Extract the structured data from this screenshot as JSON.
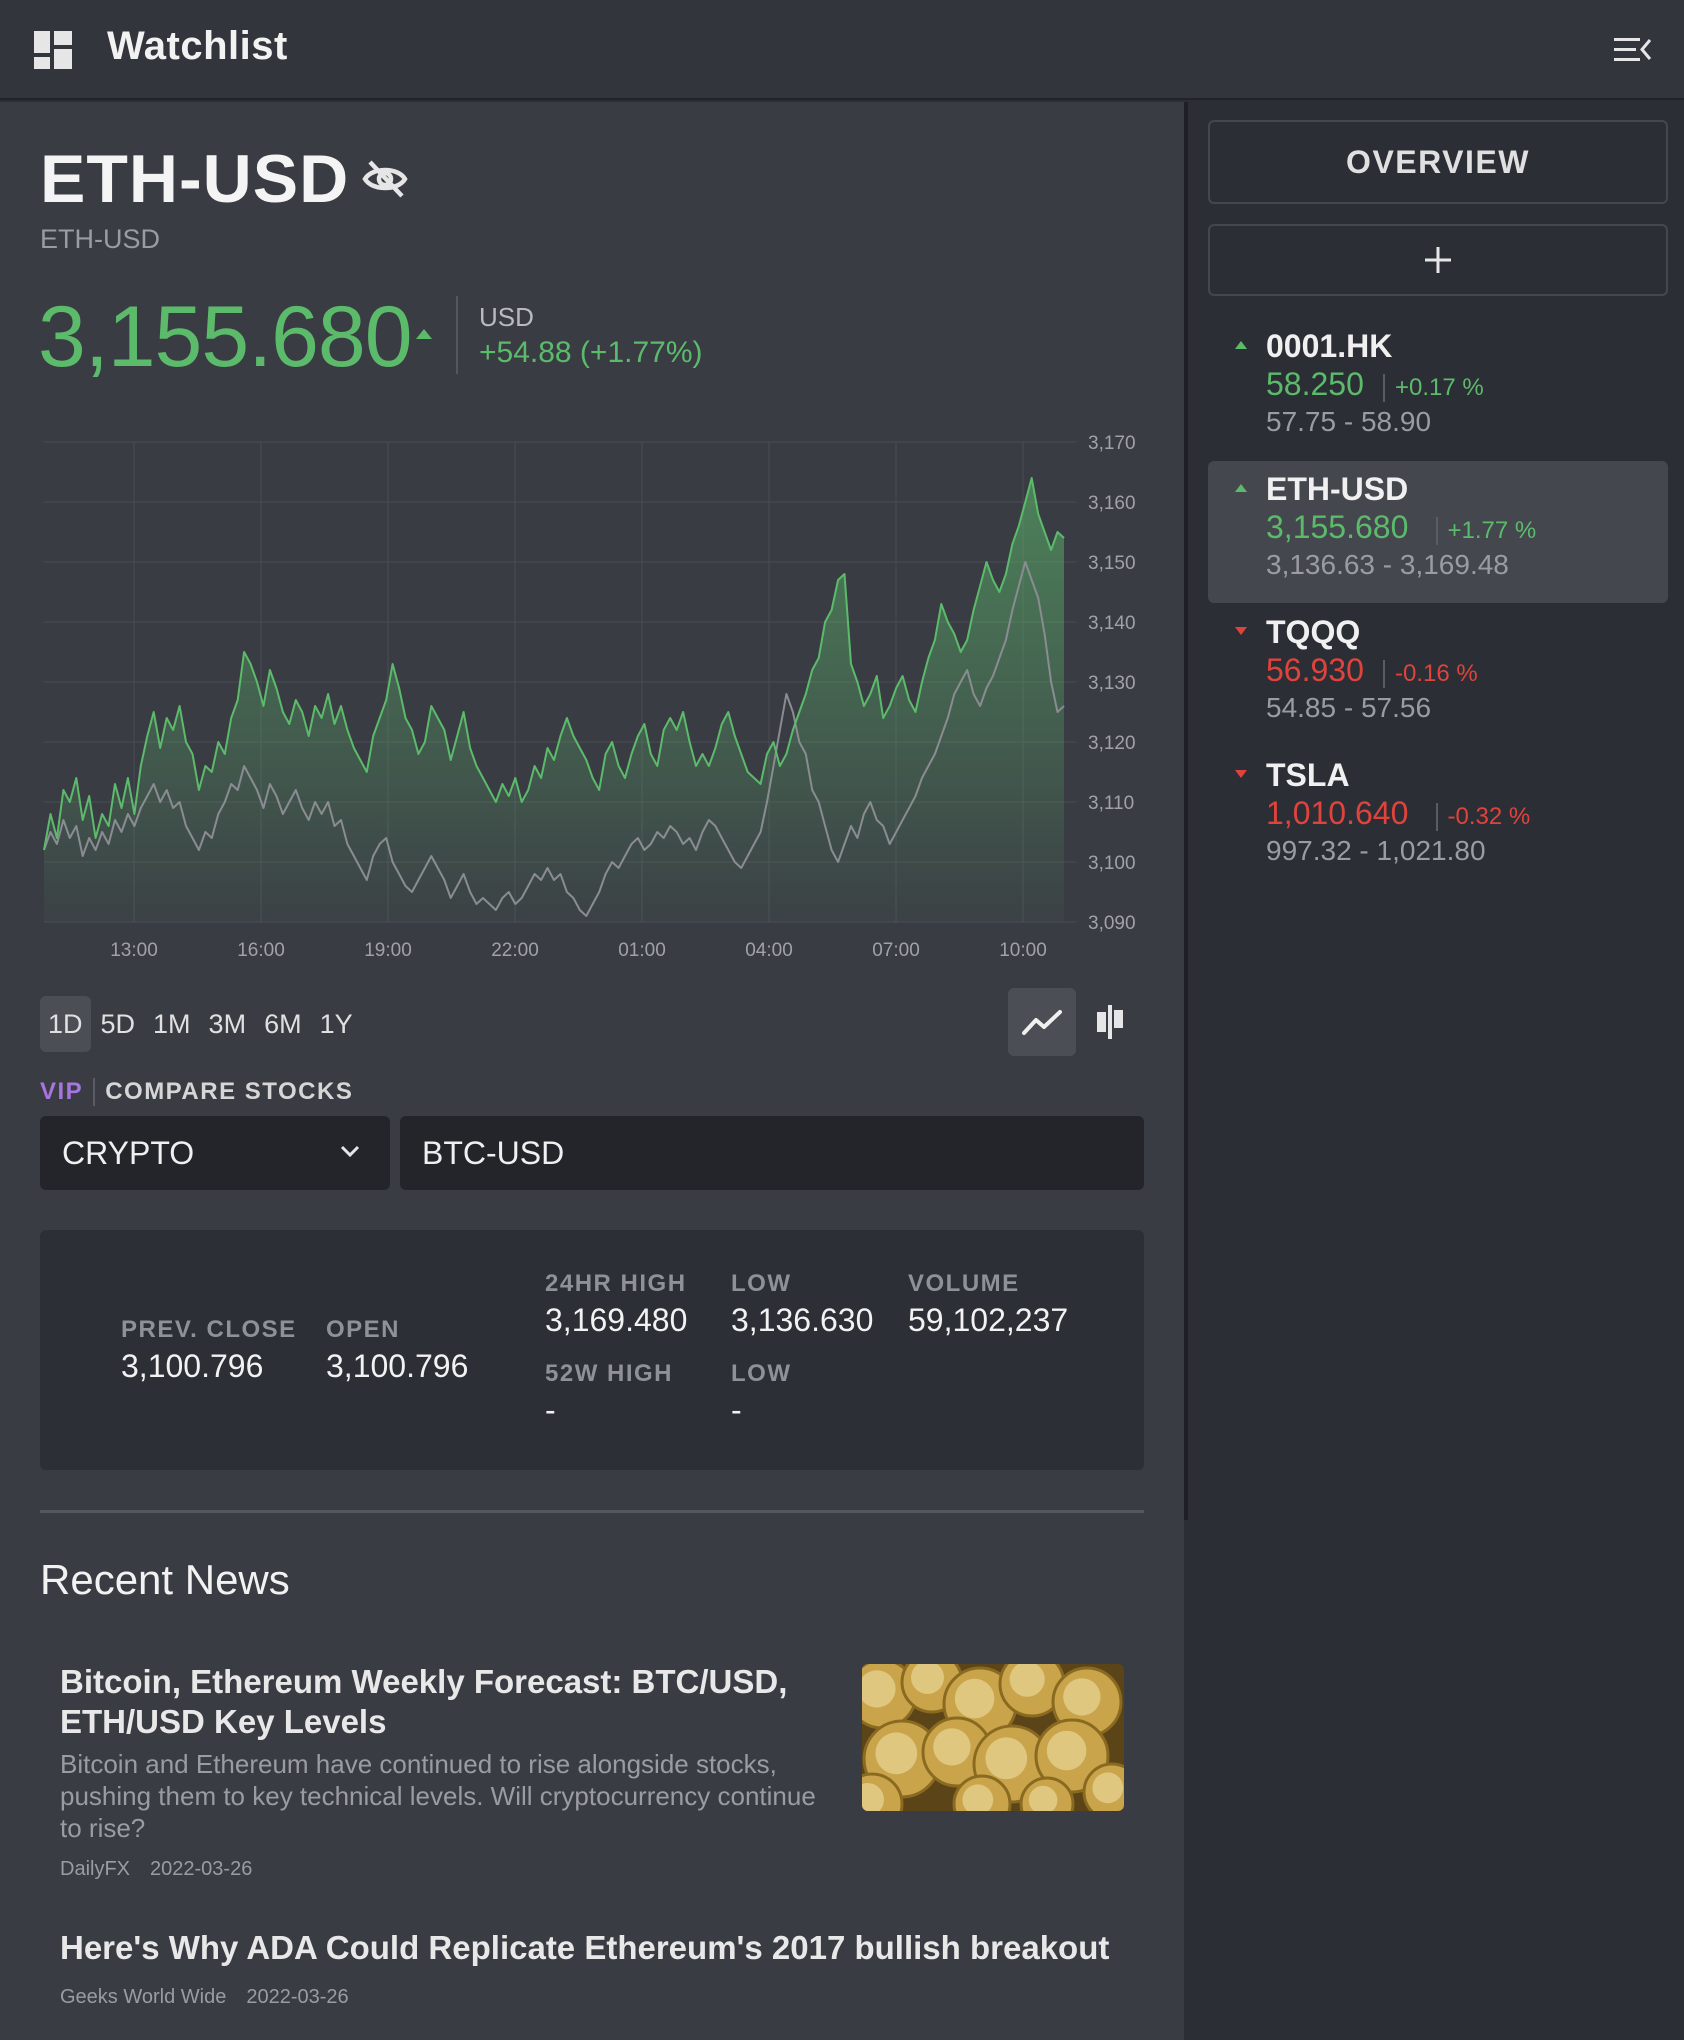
{
  "header": {
    "title": "Watchlist"
  },
  "symbol": {
    "title": "ETH-USD",
    "subtitle": "ETH-USD",
    "price": "3,155.680",
    "currency": "USD",
    "change": "+54.88 (+1.77%)"
  },
  "chart_data": {
    "type": "area",
    "x_ticks": [
      "13:00",
      "16:00",
      "19:00",
      "22:00",
      "01:00",
      "04:00",
      "07:00",
      "10:00"
    ],
    "y_ticks": [
      "3,170",
      "3,160",
      "3,150",
      "3,140",
      "3,130",
      "3,120",
      "3,110",
      "3,100",
      "3,090"
    ],
    "ylim": [
      3090,
      3170
    ],
    "grid": true,
    "series": [
      {
        "color": "#5cbb6b",
        "fill": true,
        "values": [
          3102,
          3108,
          3104,
          3112,
          3110,
          3114,
          3107,
          3111,
          3104,
          3108,
          3106,
          3113,
          3109,
          3114,
          3108,
          3116,
          3121,
          3125,
          3119,
          3124,
          3122,
          3126,
          3120,
          3118,
          3112,
          3116,
          3115,
          3120,
          3118,
          3124,
          3127,
          3135,
          3133,
          3130,
          3126,
          3132,
          3129,
          3125,
          3123,
          3127,
          3125,
          3121,
          3126,
          3124,
          3128,
          3123,
          3126,
          3122,
          3119,
          3117,
          3115,
          3121,
          3124,
          3127,
          3133,
          3129,
          3124,
          3122,
          3118,
          3120,
          3126,
          3124,
          3122,
          3117,
          3121,
          3125,
          3119,
          3116,
          3114,
          3112,
          3110,
          3113,
          3111,
          3114,
          3110,
          3112,
          3116,
          3114,
          3119,
          3117,
          3121,
          3124,
          3121,
          3119,
          3117,
          3114,
          3112,
          3118,
          3120,
          3116,
          3114,
          3118,
          3121,
          3123,
          3118,
          3116,
          3122,
          3124,
          3122,
          3125,
          3120,
          3116,
          3118,
          3116,
          3119,
          3123,
          3125,
          3121,
          3118,
          3115,
          3114,
          3113,
          3118,
          3120,
          3116,
          3118,
          3122,
          3125,
          3128,
          3132,
          3134,
          3140,
          3142,
          3147,
          3148,
          3133,
          3130,
          3126,
          3128,
          3131,
          3124,
          3126,
          3129,
          3131,
          3127,
          3125,
          3130,
          3134,
          3137,
          3143,
          3140,
          3138,
          3135,
          3137,
          3142,
          3146,
          3150,
          3147,
          3145,
          3148,
          3153,
          3156,
          3160,
          3164,
          3158,
          3155,
          3152,
          3155,
          3154
        ]
      },
      {
        "color": "#8a8c92",
        "fill": false,
        "values": [
          3102,
          3105,
          3103,
          3107,
          3104,
          3106,
          3101,
          3104,
          3102,
          3105,
          3103,
          3107,
          3105,
          3108,
          3106,
          3109,
          3111,
          3113,
          3110,
          3112,
          3109,
          3110,
          3106,
          3104,
          3102,
          3105,
          3104,
          3108,
          3110,
          3113,
          3112,
          3116,
          3114,
          3112,
          3109,
          3113,
          3111,
          3108,
          3110,
          3112,
          3109,
          3107,
          3110,
          3108,
          3110,
          3106,
          3107,
          3103,
          3101,
          3099,
          3097,
          3101,
          3103,
          3104,
          3100,
          3098,
          3096,
          3095,
          3097,
          3099,
          3101,
          3099,
          3097,
          3094,
          3096,
          3098,
          3095,
          3093,
          3094,
          3093,
          3092,
          3094,
          3095,
          3093,
          3094,
          3096,
          3098,
          3097,
          3099,
          3097,
          3098,
          3095,
          3094,
          3092,
          3091,
          3093,
          3095,
          3098,
          3100,
          3099,
          3101,
          3103,
          3104,
          3102,
          3103,
          3105,
          3104,
          3106,
          3105,
          3103,
          3104,
          3102,
          3105,
          3107,
          3106,
          3104,
          3102,
          3100,
          3099,
          3101,
          3103,
          3105,
          3110,
          3116,
          3122,
          3128,
          3125,
          3120,
          3118,
          3112,
          3110,
          3106,
          3102,
          3100,
          3103,
          3106,
          3104,
          3108,
          3110,
          3107,
          3106,
          3103,
          3105,
          3107,
          3109,
          3111,
          3114,
          3116,
          3118,
          3121,
          3124,
          3128,
          3130,
          3132,
          3128,
          3126,
          3129,
          3131,
          3134,
          3137,
          3142,
          3146,
          3150,
          3147,
          3144,
          3138,
          3130,
          3125,
          3126
        ]
      }
    ]
  },
  "ranges": [
    "1D",
    "5D",
    "1M",
    "3M",
    "6M",
    "1Y"
  ],
  "compare": {
    "vip": "VIP",
    "label": "COMPARE STOCKS",
    "select": "CRYPTO",
    "search_value": "BTC-USD"
  },
  "stats": {
    "prev_close_label": "PREV. CLOSE",
    "prev_close": "3,100.796",
    "open_label": "OPEN",
    "open": "3,100.796",
    "high24_label": "24HR HIGH",
    "high24": "3,169.480",
    "low24_label": "LOW",
    "low24": "3,136.630",
    "volume_label": "VOLUME",
    "volume": "59,102,237",
    "high52_label": "52W HIGH",
    "high52": "-",
    "low52_label": "LOW",
    "low52": "-"
  },
  "news": {
    "heading": "Recent News",
    "items": [
      {
        "title": "Bitcoin, Ethereum Weekly Forecast: BTC/USD, ETH/USD Key Levels",
        "description": "Bitcoin and Ethereum have continued to rise alongside stocks, pushing them to key technical levels. Will cryptocurrency continue to rise?",
        "source": "DailyFX",
        "date": "2022-03-26"
      },
      {
        "title": "Here's Why ADA Could Replicate Ethereum's 2017 bullish breakout",
        "source": "Geeks World Wide",
        "date": "2022-03-26"
      }
    ]
  },
  "sidebar": {
    "overview_label": "OVERVIEW",
    "add_label": "+",
    "items": [
      {
        "symbol": "0001.HK",
        "price": "58.250",
        "change": "+0.17 %",
        "range": "57.75 - 58.90",
        "direction": "up"
      },
      {
        "symbol": "ETH-USD",
        "price": "3,155.680",
        "change": "+1.77 %",
        "range": "3,136.63 - 3,169.48",
        "direction": "up",
        "active": true
      },
      {
        "symbol": "TQQQ",
        "price": "56.930",
        "change": "-0.16 %",
        "range": "54.85 - 57.56",
        "direction": "down"
      },
      {
        "symbol": "TSLA",
        "price": "1,010.640",
        "change": "-0.32 %",
        "range": "997.32 - 1,021.80",
        "direction": "down"
      }
    ]
  },
  "colors": {
    "up": "#5cbb6b",
    "down": "#e0433c",
    "vip": "#a874e0"
  }
}
